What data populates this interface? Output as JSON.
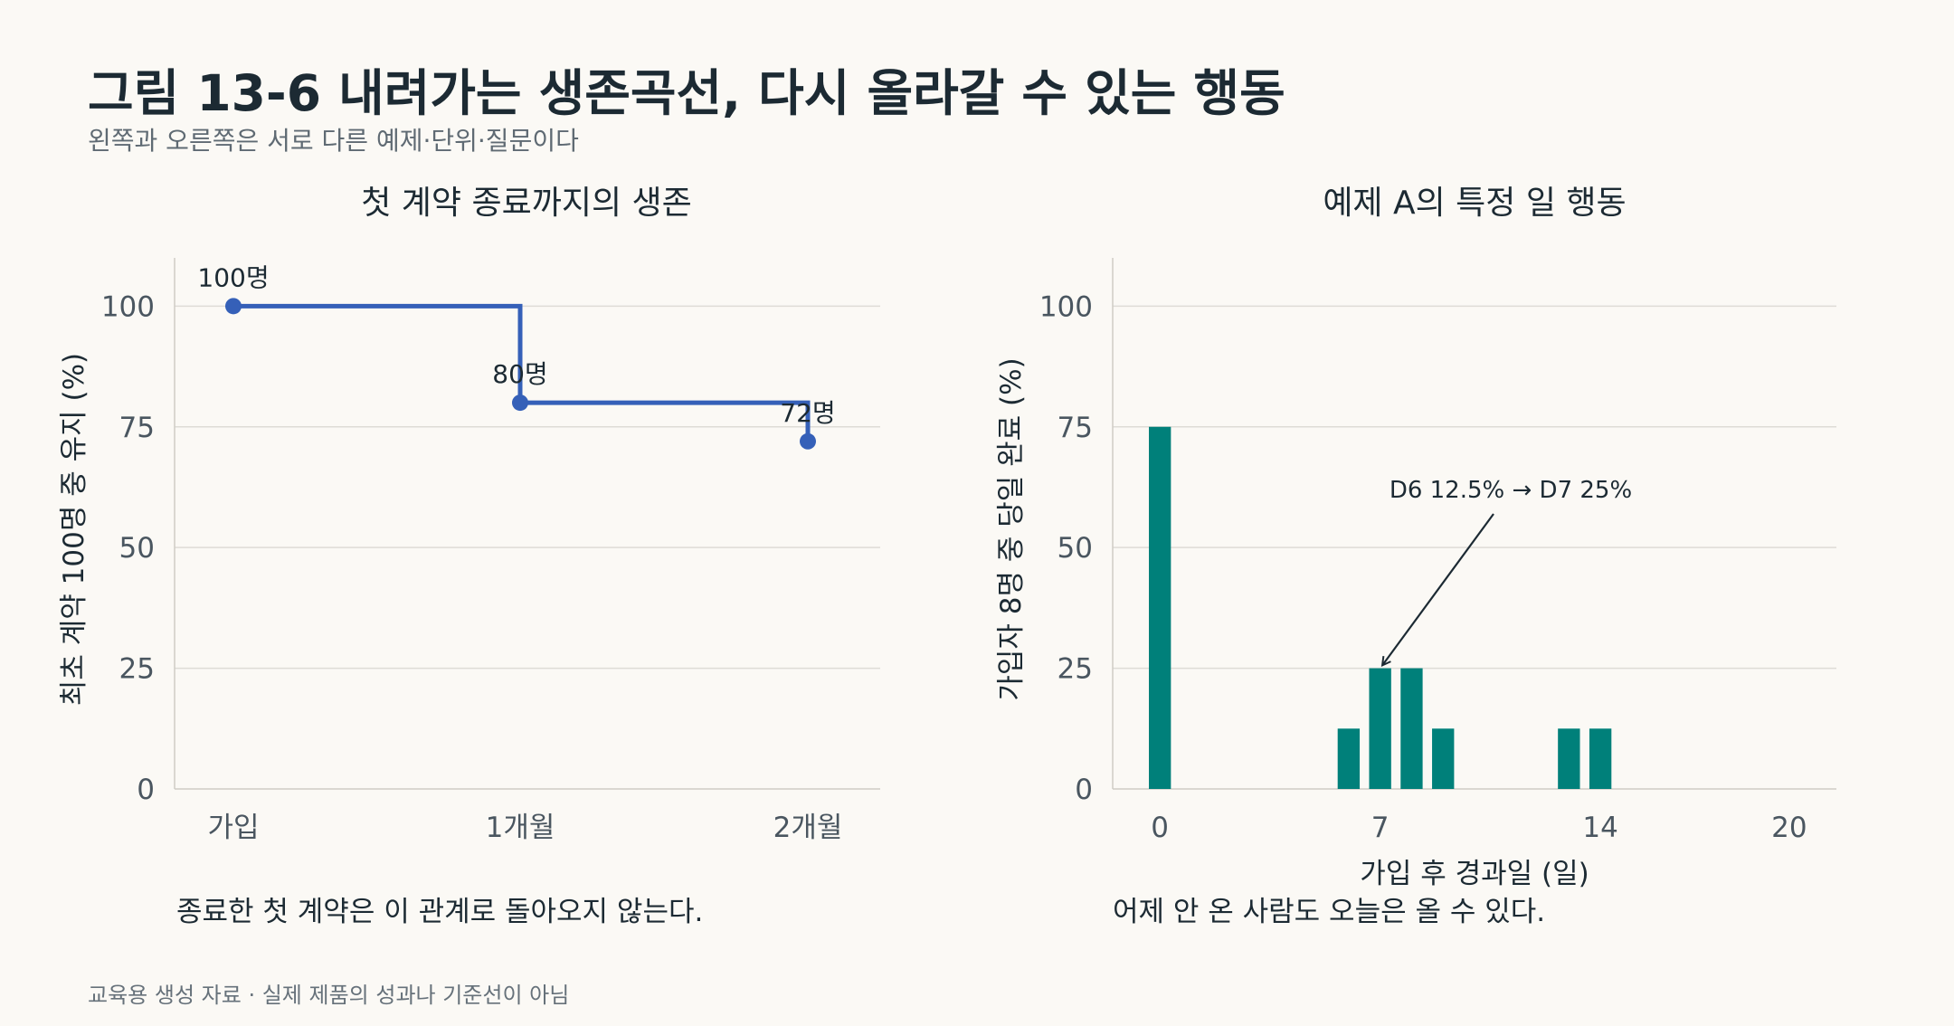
{
  "figure": {
    "title": "그림 13-6  내려가는 생존곡선, 다시 올라갈 수 있는 행동",
    "subtitle": "왼쪽과 오른쪽은 서로 다른 예제·단위·질문이다",
    "footnote": "교육용 생성 자료 · 실제 제품의 성과나 기준선이 아님"
  },
  "colors": {
    "survival": "#3560b8",
    "bars": "#00807a",
    "annotation_arrow": "#1c2a33"
  },
  "chart_data": [
    {
      "type": "line",
      "step": true,
      "title": "첫 계약 종료까지의 생존",
      "ylabel": "최초 계약 100명 중 유지 (%)",
      "xlabel": "",
      "categories": [
        "가입",
        "1개월",
        "2개월"
      ],
      "values": [
        100,
        80,
        72
      ],
      "point_labels": [
        "100명",
        "80명",
        "72명"
      ],
      "ylim": [
        0,
        110
      ],
      "yticks": [
        0,
        25,
        50,
        75,
        100
      ],
      "grid": true,
      "caption": "종료한 첫 계약은 이 관계로 돌아오지 않는다."
    },
    {
      "type": "bar",
      "title": "예제 A의 특정 일 행동",
      "ylabel": "가입자 8명 중 당일 완료 (%)",
      "xlabel": "가입 후 경과일 (일)",
      "x": [
        0,
        6,
        7,
        8,
        9,
        13,
        14
      ],
      "values": [
        75,
        12.5,
        25,
        25,
        12.5,
        12.5,
        12.5
      ],
      "xlim": [
        -1.5,
        21.5
      ],
      "xticks": [
        0,
        7,
        14,
        20
      ],
      "ylim": [
        0,
        110
      ],
      "yticks": [
        0,
        25,
        50,
        75,
        100
      ],
      "grid": true,
      "annotation": {
        "text": "D6 12.5% → D7 25%",
        "target_x": 7,
        "target_y": 25
      },
      "caption": "어제 안 온 사람도 오늘은 올 수 있다."
    }
  ]
}
